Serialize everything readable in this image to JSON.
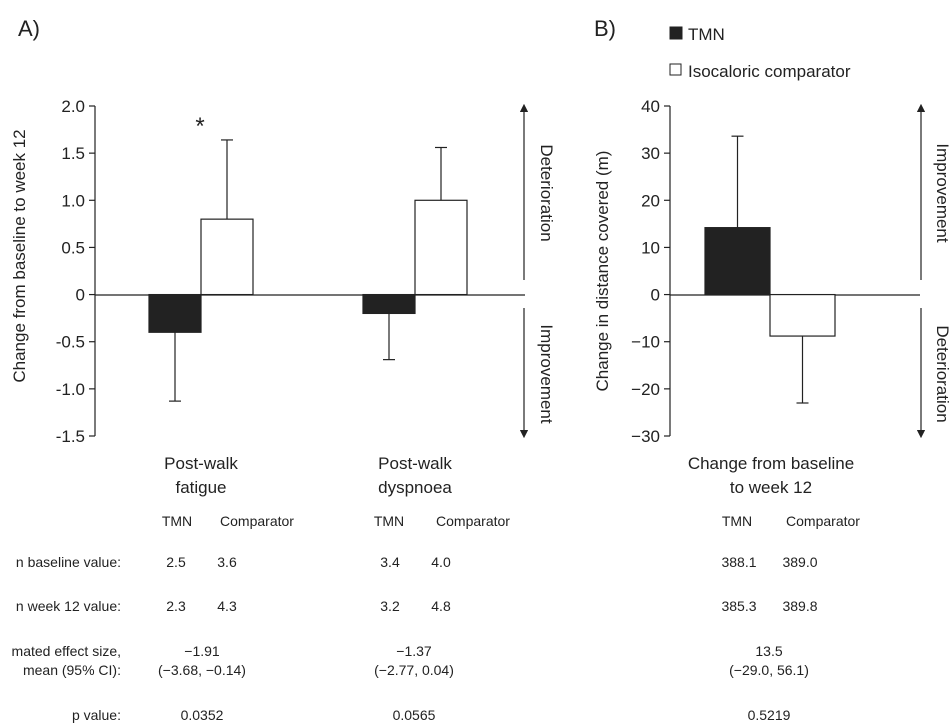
{
  "panels": {
    "a": "A)",
    "b": "B)"
  },
  "legend": {
    "tmn": "TMN",
    "comparator": "Isocaloric comparator",
    "colors": {
      "tmn": "#222222",
      "comparator": "#ffffff"
    }
  },
  "chart_data": [
    {
      "type": "bar",
      "panel": "A)",
      "ylabel": "Change from baseline to week 12",
      "ylim": [
        -1.5,
        2.0
      ],
      "yticks": [
        "2.0",
        "1.5",
        "1.0",
        "0.5",
        "0",
        "-0.5",
        "-1.0",
        "-1.5"
      ],
      "categories": [
        [
          "Post-walk",
          "fatigue"
        ],
        [
          "Post-walk",
          "dyspnoea"
        ]
      ],
      "series": [
        {
          "name": "TMN",
          "values": [
            -0.4,
            -0.2
          ],
          "err_end": [
            -1.13,
            -0.69
          ]
        },
        {
          "name": "Isocaloric comparator",
          "values": [
            0.8,
            1.0
          ],
          "err_end": [
            1.64,
            1.56
          ]
        }
      ],
      "significance": "*",
      "direction_labels": {
        "up": "Deterioration",
        "down": "Improvement"
      }
    },
    {
      "type": "bar",
      "panel": "B)",
      "ylabel": "Change in distance covered (m)",
      "xlabel": [
        "Change from baseline",
        "to week 12"
      ],
      "ylim": [
        -30,
        40
      ],
      "yticks": [
        "40",
        "30",
        "20",
        "10",
        "0",
        "−10",
        "−20",
        "−30"
      ],
      "series": [
        {
          "name": "TMN",
          "values": [
            14.2
          ],
          "err_end": [
            33.6
          ]
        },
        {
          "name": "Isocaloric comparator",
          "values": [
            -8.8
          ],
          "err_end": [
            -23.0
          ]
        }
      ],
      "direction_labels": {
        "up": "Improvement",
        "down": "Deterioration"
      }
    }
  ],
  "table": {
    "col_tmn": "TMN",
    "col_comparator": "Comparator",
    "row_labels": [
      "n baseline value:",
      "n week 12 value:",
      "mated effect size,",
      "mean (95% CI):",
      "p value:"
    ],
    "fatigue": {
      "baseline": [
        "2.5",
        "3.6"
      ],
      "week12": [
        "2.3",
        "4.3"
      ],
      "effect": "−1.91",
      "ci": "(−3.68, −0.14)",
      "p": "0.0352"
    },
    "dyspnoea": {
      "baseline": [
        "3.4",
        "4.0"
      ],
      "week12": [
        "3.2",
        "4.8"
      ],
      "effect": "−1.37",
      "ci": "(−2.77, 0.04)",
      "p": "0.0565"
    },
    "distance": {
      "baseline": [
        "388.1",
        "389.0"
      ],
      "week12": [
        "385.3",
        "389.8"
      ],
      "effect": "13.5",
      "ci": "(−29.0, 56.1)",
      "p": "0.5219"
    }
  }
}
